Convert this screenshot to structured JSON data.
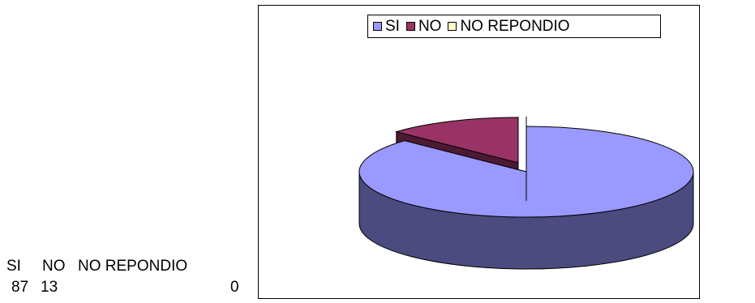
{
  "table": {
    "headers": [
      "SI",
      "NO",
      "NO REPONDIO"
    ],
    "values": [
      "87",
      "13",
      "0"
    ]
  },
  "chart_data": {
    "type": "pie",
    "categories": [
      "SI",
      "NO",
      "NO REPONDIO"
    ],
    "values": [
      87,
      13,
      0
    ],
    "title": "",
    "legend": "top",
    "colors": [
      "#9999ff",
      "#993366",
      "#ffffcc"
    ],
    "side_colors": [
      "#4b4b80",
      "#4d1a33",
      "#808066"
    ]
  }
}
